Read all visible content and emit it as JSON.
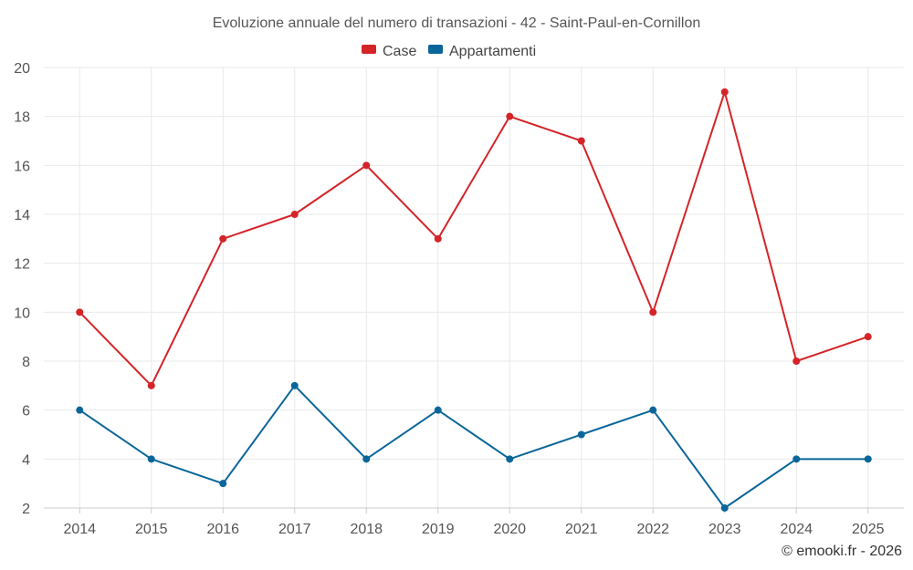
{
  "chart_data": {
    "type": "line",
    "title": "Evoluzione annuale del numero di transazioni - 42 - Saint-Paul-en-Cornillon",
    "categories": [
      "2014",
      "2015",
      "2016",
      "2017",
      "2018",
      "2019",
      "2020",
      "2021",
      "2022",
      "2023",
      "2024",
      "2025"
    ],
    "series": [
      {
        "key": "case",
        "name": "Case",
        "color": "#d42428",
        "values": [
          10,
          7,
          13,
          14,
          16,
          13,
          18,
          17,
          10,
          19,
          8,
          9
        ]
      },
      {
        "key": "appartamenti",
        "name": "Appartamenti",
        "color": "#0a6699",
        "values": [
          6,
          4,
          3,
          7,
          4,
          6,
          4,
          5,
          6,
          2,
          4,
          4
        ]
      }
    ],
    "ylim": [
      2,
      20
    ],
    "yticks": [
      2,
      4,
      6,
      8,
      10,
      12,
      14,
      16,
      18,
      20
    ],
    "grid": true,
    "legend_position": "top-center",
    "xlabel": "",
    "ylabel": ""
  },
  "credit": "© emooki.fr - 2026"
}
